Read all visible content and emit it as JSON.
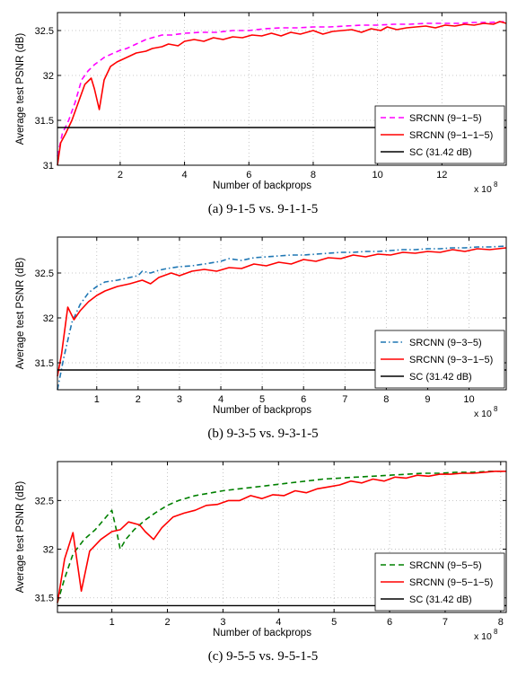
{
  "chart_data": [
    {
      "type": "line",
      "caption": "(a)  9-1-5 vs. 9-1-1-5",
      "xlabel": "Number of backprops",
      "ylabel": "Average test PSNR (dB)",
      "x_multiplier_label": "x 10",
      "x_multiplier_exp": "8",
      "xlim": [
        0.05,
        14
      ],
      "ylim": [
        31,
        32.7
      ],
      "xticks": [
        2,
        4,
        6,
        8,
        10,
        12
      ],
      "yticks": [
        31,
        31.5,
        32,
        32.5
      ],
      "grid": true,
      "legend_position": "bottom-right",
      "series": [
        {
          "name": "SRCNN (9−1−5)",
          "color": "#ff00ff",
          "style": "dashed",
          "x": [
            0.05,
            0.2,
            0.4,
            0.6,
            0.8,
            1.0,
            1.2,
            1.5,
            1.8,
            2.0,
            2.2,
            2.5,
            2.8,
            3.0,
            3.3,
            3.6,
            4.0,
            4.5,
            5.0,
            5.5,
            6.0,
            6.5,
            7.0,
            7.5,
            8.0,
            8.5,
            9.0,
            9.5,
            10.0,
            10.5,
            11.0,
            11.5,
            12.0,
            12.5,
            13.0,
            13.5,
            14.0
          ],
          "y": [
            31.1,
            31.35,
            31.5,
            31.7,
            31.95,
            32.05,
            32.12,
            32.2,
            32.25,
            32.28,
            32.3,
            32.35,
            32.4,
            32.42,
            32.45,
            32.45,
            32.47,
            32.48,
            32.48,
            32.5,
            32.5,
            32.52,
            32.53,
            32.53,
            32.54,
            32.54,
            32.55,
            32.56,
            32.56,
            32.57,
            32.57,
            32.58,
            32.58,
            32.58,
            32.59,
            32.59,
            32.6
          ]
        },
        {
          "name": "SRCNN (9−1−1−5)",
          "color": "#ff0000",
          "style": "solid",
          "x": [
            0.05,
            0.15,
            0.3,
            0.5,
            0.7,
            0.9,
            1.1,
            1.2,
            1.35,
            1.5,
            1.7,
            1.9,
            2.2,
            2.5,
            2.8,
            3.0,
            3.3,
            3.5,
            3.8,
            4.0,
            4.3,
            4.6,
            4.9,
            5.2,
            5.5,
            5.8,
            6.1,
            6.4,
            6.7,
            7.0,
            7.3,
            7.6,
            8.0,
            8.3,
            8.6,
            8.9,
            9.2,
            9.5,
            9.8,
            10.1,
            10.3,
            10.6,
            10.9,
            11.2,
            11.5,
            11.8,
            12.1,
            12.4,
            12.7,
            13.0,
            13.3,
            13.6,
            13.8,
            14.0
          ],
          "y": [
            31.0,
            31.25,
            31.35,
            31.5,
            31.7,
            31.9,
            31.97,
            31.85,
            31.62,
            31.95,
            32.1,
            32.15,
            32.2,
            32.25,
            32.27,
            32.3,
            32.32,
            32.35,
            32.33,
            32.38,
            32.4,
            32.38,
            32.42,
            32.4,
            32.43,
            32.42,
            32.45,
            32.44,
            32.47,
            32.44,
            32.48,
            32.46,
            32.5,
            32.46,
            32.49,
            32.5,
            32.51,
            32.48,
            32.52,
            32.5,
            32.54,
            32.51,
            32.53,
            32.54,
            32.55,
            32.53,
            32.56,
            32.55,
            32.57,
            32.56,
            32.58,
            32.57,
            32.6,
            32.58
          ]
        },
        {
          "name": "SC (31.42 dB)",
          "color": "#000000",
          "style": "solid",
          "x": [
            0.05,
            14
          ],
          "y": [
            31.42,
            31.42
          ]
        }
      ]
    },
    {
      "type": "line",
      "caption": "(b)  9-3-5 vs. 9-3-1-5",
      "xlabel": "Number of backprops",
      "ylabel": "Average test PSNR (dB)",
      "x_multiplier_label": "x 10",
      "x_multiplier_exp": "8",
      "xlim": [
        0.05,
        10.9
      ],
      "ylim": [
        31.2,
        32.9
      ],
      "xticks": [
        1,
        2,
        3,
        4,
        5,
        6,
        7,
        8,
        9,
        10
      ],
      "yticks": [
        31.5,
        32,
        32.5
      ],
      "grid": true,
      "legend_position": "bottom-right",
      "series": [
        {
          "name": "SRCNN (9−3−5)",
          "color": "#1f77b4",
          "style": "dashdot",
          "x": [
            0.05,
            0.2,
            0.4,
            0.6,
            0.8,
            1.0,
            1.2,
            1.5,
            1.8,
            2.0,
            2.1,
            2.3,
            2.5,
            2.7,
            3.0,
            3.3,
            3.6,
            4.0,
            4.2,
            4.5,
            4.8,
            5.1,
            5.4,
            5.7,
            6.0,
            6.3,
            6.6,
            6.9,
            7.2,
            7.5,
            7.8,
            8.1,
            8.4,
            8.7,
            9.0,
            9.3,
            9.6,
            9.9,
            10.2,
            10.5,
            10.9
          ],
          "y": [
            31.2,
            31.55,
            31.95,
            32.15,
            32.28,
            32.35,
            32.4,
            32.42,
            32.45,
            32.47,
            32.52,
            32.5,
            32.53,
            32.55,
            32.57,
            32.58,
            32.6,
            32.63,
            32.66,
            32.64,
            32.67,
            32.68,
            32.69,
            32.7,
            32.7,
            32.71,
            32.72,
            32.73,
            32.73,
            32.74,
            32.74,
            32.75,
            32.76,
            32.76,
            32.77,
            32.77,
            32.78,
            32.78,
            32.79,
            32.79,
            32.8
          ]
        },
        {
          "name": "SRCNN (9−3−1−5)",
          "color": "#ff0000",
          "style": "solid",
          "x": [
            0.05,
            0.15,
            0.3,
            0.45,
            0.6,
            0.8,
            1.0,
            1.2,
            1.5,
            1.8,
            2.1,
            2.3,
            2.5,
            2.8,
            3.0,
            3.3,
            3.6,
            3.9,
            4.2,
            4.5,
            4.8,
            5.1,
            5.4,
            5.7,
            6.0,
            6.3,
            6.6,
            6.9,
            7.2,
            7.5,
            7.8,
            8.1,
            8.4,
            8.7,
            9.0,
            9.3,
            9.6,
            9.9,
            10.2,
            10.5,
            10.9
          ],
          "y": [
            31.35,
            31.6,
            32.12,
            31.98,
            32.08,
            32.18,
            32.25,
            32.3,
            32.35,
            32.38,
            32.42,
            32.38,
            32.45,
            32.5,
            32.47,
            32.52,
            32.54,
            32.52,
            32.56,
            32.55,
            32.6,
            32.58,
            32.62,
            32.6,
            32.65,
            32.63,
            32.67,
            32.66,
            32.7,
            32.68,
            32.71,
            32.7,
            32.73,
            32.72,
            32.74,
            32.73,
            32.76,
            32.74,
            32.77,
            32.76,
            32.78
          ]
        },
        {
          "name": "SC (31.42 dB)",
          "color": "#000000",
          "style": "solid",
          "x": [
            0.05,
            10.9
          ],
          "y": [
            31.42,
            31.42
          ]
        }
      ]
    },
    {
      "type": "line",
      "caption": "(c)  9-5-5 vs. 9-5-1-5",
      "xlabel": "Number of backprops",
      "ylabel": "Average test PSNR (dB)",
      "x_multiplier_label": "x 10",
      "x_multiplier_exp": "8",
      "xlim": [
        0.02,
        8.1
      ],
      "ylim": [
        31.35,
        32.9
      ],
      "xticks": [
        1,
        2,
        3,
        4,
        5,
        6,
        7,
        8
      ],
      "yticks": [
        31.5,
        32,
        32.5
      ],
      "grid": true,
      "legend_position": "bottom-right",
      "series": [
        {
          "name": "SRCNN (9−5−5)",
          "color": "#008000",
          "style": "dashed",
          "x": [
            0.02,
            0.15,
            0.3,
            0.5,
            0.7,
            0.85,
            1.0,
            1.08,
            1.15,
            1.25,
            1.4,
            1.6,
            1.8,
            2.0,
            2.2,
            2.5,
            2.8,
            3.0,
            3.3,
            3.6,
            3.9,
            4.2,
            4.5,
            4.8,
            5.1,
            5.4,
            5.7,
            6.0,
            6.3,
            6.6,
            6.9,
            7.2,
            7.5,
            7.8,
            8.1
          ],
          "y": [
            31.45,
            31.7,
            31.95,
            32.1,
            32.2,
            32.3,
            32.4,
            32.2,
            32.0,
            32.1,
            32.2,
            32.3,
            32.38,
            32.45,
            32.5,
            32.55,
            32.58,
            32.6,
            32.62,
            32.64,
            32.66,
            32.68,
            32.7,
            32.72,
            32.73,
            32.74,
            32.75,
            32.76,
            32.77,
            32.78,
            32.78,
            32.79,
            32.79,
            32.8,
            32.8
          ]
        },
        {
          "name": "SRCNN (9−5−1−5)",
          "color": "#ff0000",
          "style": "solid",
          "x": [
            0.02,
            0.15,
            0.3,
            0.45,
            0.6,
            0.8,
            1.0,
            1.15,
            1.3,
            1.5,
            1.6,
            1.75,
            1.9,
            2.1,
            2.3,
            2.5,
            2.7,
            2.9,
            3.1,
            3.3,
            3.5,
            3.7,
            3.9,
            4.1,
            4.3,
            4.5,
            4.7,
            4.9,
            5.1,
            5.3,
            5.5,
            5.7,
            5.9,
            6.1,
            6.3,
            6.5,
            6.7,
            6.9,
            7.1,
            7.3,
            7.5,
            7.7,
            7.9,
            8.1
          ],
          "y": [
            31.45,
            31.9,
            32.17,
            31.57,
            31.98,
            32.1,
            32.18,
            32.2,
            32.28,
            32.25,
            32.18,
            32.1,
            32.22,
            32.33,
            32.37,
            32.4,
            32.45,
            32.46,
            32.5,
            32.5,
            32.55,
            32.52,
            32.56,
            32.55,
            32.6,
            32.58,
            32.62,
            32.64,
            32.66,
            32.7,
            32.68,
            32.72,
            32.7,
            32.74,
            32.73,
            32.76,
            32.75,
            32.77,
            32.77,
            32.78,
            32.78,
            32.79,
            32.8,
            32.8
          ]
        },
        {
          "name": "SC (31.42 dB)",
          "color": "#000000",
          "style": "solid",
          "x": [
            0.02,
            8.1
          ],
          "y": [
            31.42,
            31.42
          ]
        }
      ]
    }
  ]
}
